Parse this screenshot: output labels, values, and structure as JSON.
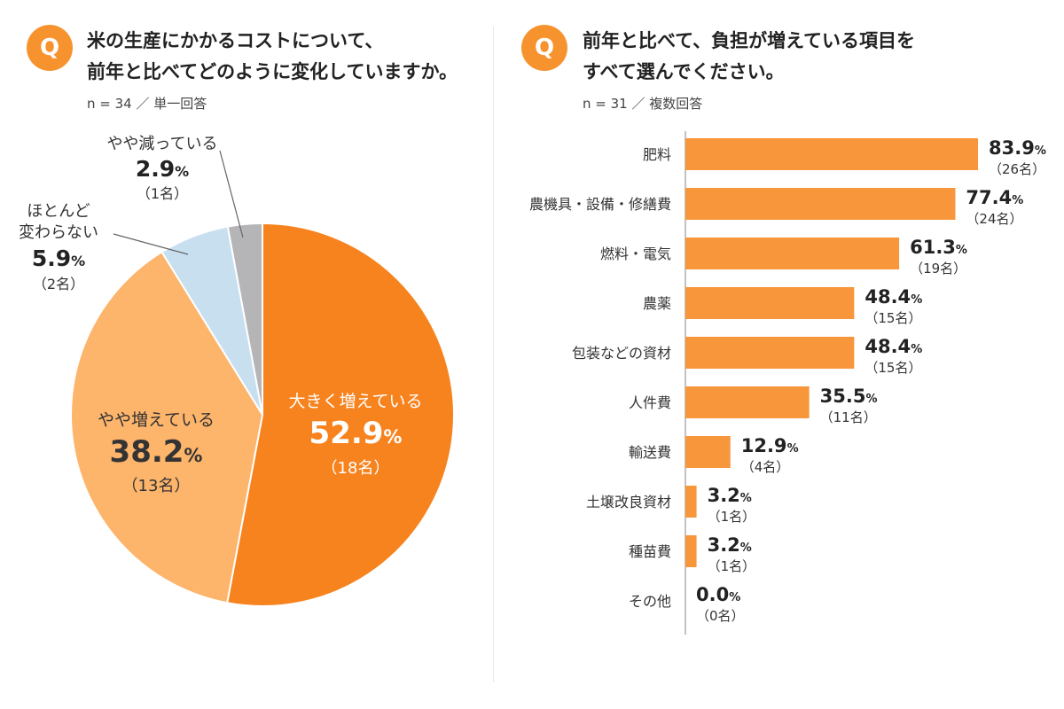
{
  "colors": {
    "accent": "#F7932E",
    "pie_big_increase": "#F7831F",
    "pie_slight_increase": "#FDB46B",
    "pie_unchanged": "#C8DFF0",
    "pie_slight_decrease": "#B5B5B8",
    "bar": "#F7963B"
  },
  "left": {
    "badge": "Q",
    "title_line1": "米の生産にかかるコストについて、",
    "title_line2": "前年と比べてどのように変化していますか。",
    "meta": "n = 34 ／ 単一回答"
  },
  "right": {
    "badge": "Q",
    "title_line1": "前年と比べて、負担が増えている項目を",
    "title_line2": "すべて選んでください。",
    "meta": "n = 31 ／ 複数回答"
  },
  "chart_data": [
    {
      "type": "pie",
      "title": "米の生産にかかるコストについて、前年と比べてどのように変化していますか。",
      "slices": [
        {
          "label": "大きく増えている",
          "percent": 52.9,
          "count": "（18名）"
        },
        {
          "label": "やや増えている",
          "percent": 38.2,
          "count": "（13名）"
        },
        {
          "label_lines": [
            "ほとんど",
            "変わらない"
          ],
          "percent": 5.9,
          "count": "（2名）"
        },
        {
          "label": "やや減っている",
          "percent": 2.9,
          "count": "（1名）"
        }
      ]
    },
    {
      "type": "bar",
      "orientation": "horizontal",
      "title": "前年と比べて、負担が増えている項目をすべて選んでください。",
      "xlim": [
        0,
        100
      ],
      "categories": [
        "肥料",
        "農機具・設備・修繕費",
        "燃料・電気",
        "農薬",
        "包装などの資材",
        "人件費",
        "輸送費",
        "土壌改良資材",
        "種苗費",
        "その他"
      ],
      "values": [
        83.9,
        77.4,
        61.3,
        48.4,
        48.4,
        35.5,
        12.9,
        3.2,
        3.2,
        0.0
      ],
      "counts": [
        "（26名）",
        "（24名）",
        "（19名）",
        "（15名）",
        "（15名）",
        "（11名）",
        "（4名）",
        "（1名）",
        "（1名）",
        "（0名）"
      ]
    }
  ]
}
